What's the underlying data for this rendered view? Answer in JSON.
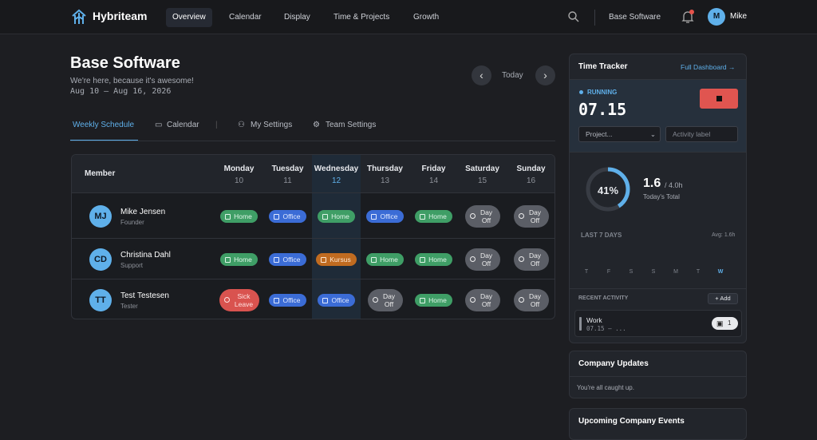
{
  "nav": {
    "brand": "Hybriteam",
    "items": [
      "Overview",
      "Calendar",
      "Display",
      "Time & Projects",
      "Growth"
    ],
    "org": "Base Software",
    "user_initial": "M",
    "user_name": "Mike"
  },
  "header": {
    "title": "Base Software",
    "subtitle": "We're here, because it's awesome!",
    "dates": "Aug 10 – Aug 16, 2026",
    "today": "Today"
  },
  "tabs": [
    "Weekly Schedule",
    "Calendar",
    "My Settings",
    "Team Settings"
  ],
  "table": {
    "member_header": "Member",
    "days": [
      {
        "name": "Monday",
        "date": "10"
      },
      {
        "name": "Tuesday",
        "date": "11"
      },
      {
        "name": "Wednesday",
        "date": "12"
      },
      {
        "name": "Thursday",
        "date": "13"
      },
      {
        "name": "Friday",
        "date": "14"
      },
      {
        "name": "Saturday",
        "date": "15"
      },
      {
        "name": "Sunday",
        "date": "16"
      }
    ],
    "rows": [
      {
        "initials": "MJ",
        "name": "Mike Jensen",
        "role": "Founder",
        "cells": [
          "Home",
          "Office",
          "Home",
          "Office",
          "Home",
          "Day Off",
          "Day Off"
        ]
      },
      {
        "initials": "CD",
        "name": "Christina Dahl",
        "role": "Support",
        "cells": [
          "Home",
          "Office",
          "Kursus",
          "Home",
          "Home",
          "Day Off",
          "Day Off"
        ]
      },
      {
        "initials": "TT",
        "name": "Test Testesen",
        "role": "Tester",
        "cells": [
          "Sick Leave",
          "Office",
          "Office",
          "Day Off",
          "Home",
          "Day Off",
          "Day Off"
        ]
      }
    ]
  },
  "tracker": {
    "title": "Time Tracker",
    "link": "Full Dashboard →",
    "status": "RUNNING",
    "time": "07.15",
    "project": "Project...",
    "activity_placeholder": "Activity label",
    "ring": "41%",
    "total": "1.6",
    "total_of": "/ 4.0h",
    "total_label": "Today's Total",
    "last7": "LAST 7 DAYS",
    "avg": "Avg: 1.6h",
    "week_days": [
      "T",
      "F",
      "S",
      "S",
      "M",
      "T",
      "W"
    ],
    "recent": "RECENT ACTIVITY",
    "add": "+ Add",
    "activity": {
      "name": "Work",
      "time": "07.15 – ...",
      "count": "1"
    }
  },
  "updates": {
    "title": "Company Updates",
    "text": "You're all caught up."
  },
  "events": {
    "title": "Upcoming Company Events"
  }
}
